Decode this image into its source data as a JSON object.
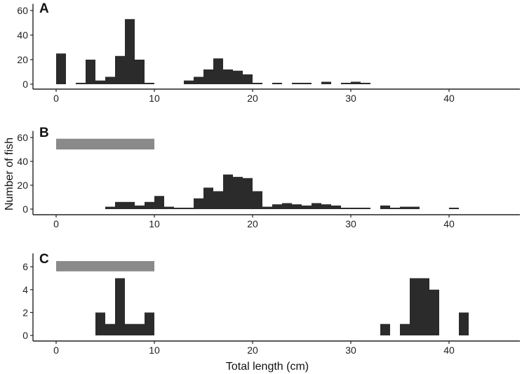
{
  "chart_data": {
    "type": "histogram",
    "bin_width_cm": 1,
    "xlabel": "Total length (cm)",
    "ylabel": "Number of fish",
    "xlim": [
      -2,
      47
    ],
    "x_ticks": [
      0,
      10,
      20,
      30,
      40
    ],
    "panels": [
      {
        "label": "A",
        "ylim": [
          0,
          62
        ],
        "y_ticks": [
          0,
          20,
          40,
          60
        ],
        "counts": [
          {
            "x": 0.5,
            "y": 25
          },
          {
            "x": 2.5,
            "y": 1
          },
          {
            "x": 3.5,
            "y": 20
          },
          {
            "x": 4.5,
            "y": 3
          },
          {
            "x": 5.5,
            "y": 6
          },
          {
            "x": 6.5,
            "y": 23
          },
          {
            "x": 7.5,
            "y": 53
          },
          {
            "x": 8.5,
            "y": 20
          },
          {
            "x": 9.5,
            "y": 1
          },
          {
            "x": 13.5,
            "y": 3
          },
          {
            "x": 14.5,
            "y": 6
          },
          {
            "x": 15.5,
            "y": 12
          },
          {
            "x": 16.5,
            "y": 21
          },
          {
            "x": 17.5,
            "y": 12
          },
          {
            "x": 18.5,
            "y": 11
          },
          {
            "x": 19.5,
            "y": 8
          },
          {
            "x": 20.5,
            "y": 1
          },
          {
            "x": 22.5,
            "y": 1
          },
          {
            "x": 24.5,
            "y": 1
          },
          {
            "x": 25.5,
            "y": 1
          },
          {
            "x": 27.5,
            "y": 2
          },
          {
            "x": 29.5,
            "y": 1
          },
          {
            "x": 30.5,
            "y": 2
          },
          {
            "x": 31.5,
            "y": 1
          }
        ]
      },
      {
        "label": "B",
        "ylim": [
          0,
          62
        ],
        "y_ticks": [
          0,
          20,
          40,
          60
        ],
        "shaded_range": {
          "x": [
            0,
            10
          ],
          "y": [
            50,
            59
          ]
        },
        "counts": [
          {
            "x": 5.5,
            "y": 2
          },
          {
            "x": 6.5,
            "y": 6
          },
          {
            "x": 7.5,
            "y": 6
          },
          {
            "x": 8.5,
            "y": 3
          },
          {
            "x": 9.5,
            "y": 6
          },
          {
            "x": 10.5,
            "y": 11
          },
          {
            "x": 11.5,
            "y": 2
          },
          {
            "x": 12.5,
            "y": 1
          },
          {
            "x": 13.5,
            "y": 1
          },
          {
            "x": 14.5,
            "y": 9
          },
          {
            "x": 15.5,
            "y": 18
          },
          {
            "x": 16.5,
            "y": 15
          },
          {
            "x": 17.5,
            "y": 29
          },
          {
            "x": 18.5,
            "y": 27
          },
          {
            "x": 19.5,
            "y": 26
          },
          {
            "x": 20.5,
            "y": 15
          },
          {
            "x": 21.5,
            "y": 2
          },
          {
            "x": 22.5,
            "y": 4
          },
          {
            "x": 23.5,
            "y": 5
          },
          {
            "x": 24.5,
            "y": 4
          },
          {
            "x": 25.5,
            "y": 3
          },
          {
            "x": 26.5,
            "y": 5
          },
          {
            "x": 27.5,
            "y": 4
          },
          {
            "x": 28.5,
            "y": 3
          },
          {
            "x": 29.5,
            "y": 1
          },
          {
            "x": 30.5,
            "y": 1
          },
          {
            "x": 31.5,
            "y": 1
          },
          {
            "x": 33.5,
            "y": 3
          },
          {
            "x": 34.5,
            "y": 1
          },
          {
            "x": 35.5,
            "y": 2
          },
          {
            "x": 36.5,
            "y": 2
          },
          {
            "x": 40.5,
            "y": 1
          }
        ]
      },
      {
        "label": "C",
        "ylim": [
          0,
          6.8
        ],
        "y_ticks": [
          0,
          2,
          4,
          6
        ],
        "shaded_range": {
          "x": [
            0,
            10
          ],
          "y": [
            5.6,
            6.5
          ]
        },
        "counts": [
          {
            "x": 4.5,
            "y": 2
          },
          {
            "x": 5.5,
            "y": 1
          },
          {
            "x": 6.5,
            "y": 5
          },
          {
            "x": 7.5,
            "y": 1
          },
          {
            "x": 8.5,
            "y": 1
          },
          {
            "x": 9.5,
            "y": 2
          },
          {
            "x": 33.5,
            "y": 1
          },
          {
            "x": 35.5,
            "y": 1
          },
          {
            "x": 36.5,
            "y": 5
          },
          {
            "x": 37.5,
            "y": 5
          },
          {
            "x": 38.5,
            "y": 4
          },
          {
            "x": 41.5,
            "y": 2
          }
        ]
      }
    ]
  }
}
